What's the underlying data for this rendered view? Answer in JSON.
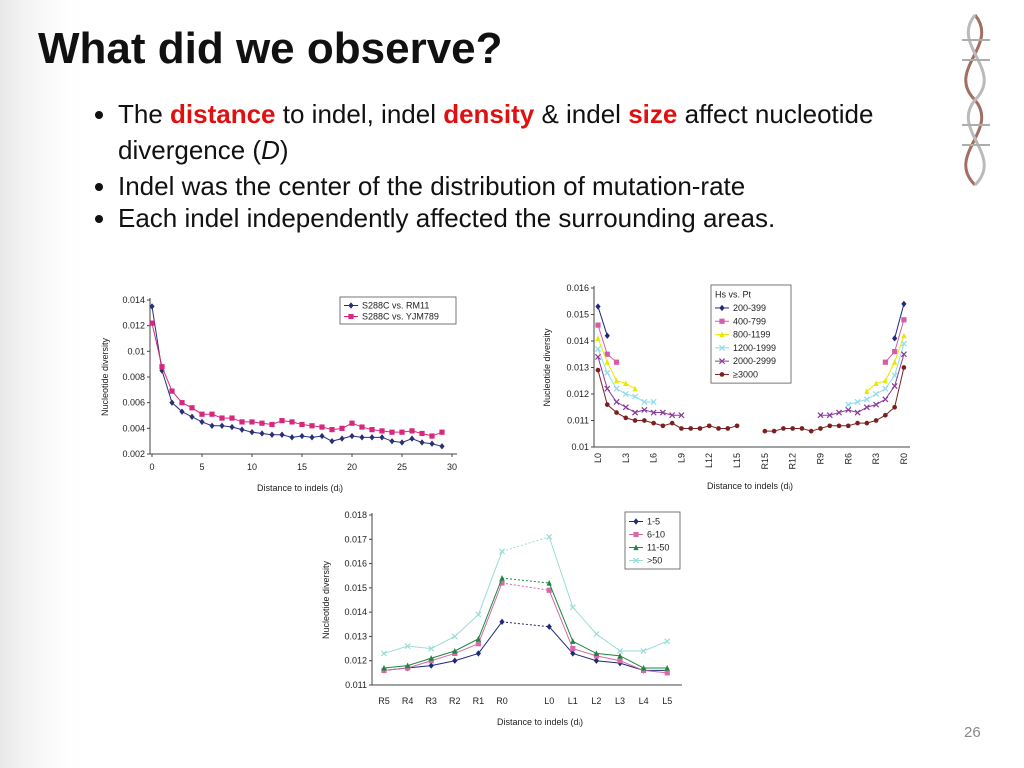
{
  "slide": {
    "title": "What did we observe?",
    "bullets": [
      [
        "The ",
        "distance",
        " to indel, indel ",
        "density",
        " & indel ",
        "size",
        " affect nucleotide divergence (",
        "D",
        ")"
      ],
      [
        "Indel was the center of the distribution of mutation-rate"
      ],
      [
        "Each indel independently affected the surrounding areas."
      ]
    ],
    "page_number": "26"
  },
  "chart_data": [
    {
      "type": "line",
      "xlabel": "Distance to indels (dᵢ)",
      "ylabel": "Nucleotide diversity",
      "x": [
        0,
        1,
        2,
        3,
        4,
        5,
        6,
        7,
        8,
        9,
        10,
        11,
        12,
        13,
        14,
        15,
        16,
        17,
        18,
        19,
        20,
        21,
        22,
        23,
        24,
        25,
        26,
        27,
        28,
        29
      ],
      "xlim": [
        0,
        30
      ],
      "xticks": [
        0,
        5,
        10,
        15,
        20,
        25,
        30
      ],
      "ylim": [
        0.002,
        0.014
      ],
      "yticks": [
        0.002,
        0.004,
        0.006,
        0.008,
        0.01,
        0.012,
        0.014
      ],
      "series": [
        {
          "name": "S288C vs. RM11",
          "color": "#2b2f7a",
          "marker": "diamond",
          "values": [
            0.0135,
            0.0085,
            0.006,
            0.0053,
            0.0049,
            0.0045,
            0.0042,
            0.0042,
            0.0041,
            0.0039,
            0.0037,
            0.0036,
            0.0035,
            0.0035,
            0.0033,
            0.0034,
            0.0033,
            0.0034,
            0.003,
            0.0032,
            0.0034,
            0.0033,
            0.0033,
            0.0033,
            0.003,
            0.0029,
            0.0032,
            0.0029,
            0.0028,
            0.0026
          ]
        },
        {
          "name": "S288C vs. YJM789",
          "color": "#d6287d",
          "marker": "square",
          "values": [
            0.0122,
            0.0088,
            0.0069,
            0.006,
            0.0056,
            0.0051,
            0.0051,
            0.0048,
            0.0048,
            0.0045,
            0.0045,
            0.0044,
            0.0043,
            0.0046,
            0.0045,
            0.0043,
            0.0042,
            0.0041,
            0.0039,
            0.004,
            0.0044,
            0.0041,
            0.0039,
            0.0038,
            0.0037,
            0.0037,
            0.0038,
            0.0036,
            0.0034,
            0.0037
          ]
        }
      ]
    },
    {
      "type": "line",
      "xlabel": "Distance to indels (dᵢ)",
      "ylabel": "Nucleotide diversity",
      "legend_title": "Hs vs. Pt",
      "categories": [
        "L0",
        null,
        null,
        "L3",
        null,
        null,
        "L6",
        null,
        null,
        "L9",
        null,
        null,
        "L12",
        null,
        null,
        "L15",
        "R15",
        null,
        null,
        "R12",
        null,
        null,
        "R9",
        null,
        null,
        "R6",
        null,
        null,
        "R3",
        null,
        null,
        "R0"
      ],
      "ylim": [
        0.01,
        0.016
      ],
      "yticks": [
        0.01,
        0.011,
        0.012,
        0.013,
        0.014,
        0.015,
        0.016
      ],
      "series": [
        {
          "name": "200-399",
          "color": "#1f2a7a",
          "marker": "diamond",
          "values": [
            0.0153,
            0.0142,
            null,
            null,
            null,
            null,
            null,
            null,
            null,
            null,
            null,
            null,
            null,
            null,
            null,
            null,
            null,
            null,
            null,
            null,
            null,
            null,
            null,
            null,
            null,
            null,
            null,
            null,
            null,
            null,
            0.0141,
            0.0154
          ]
        },
        {
          "name": "400-799",
          "color": "#d65ba8",
          "marker": "square",
          "values": [
            0.0146,
            0.0135,
            0.0132,
            null,
            null,
            null,
            null,
            null,
            null,
            null,
            null,
            null,
            null,
            null,
            null,
            null,
            null,
            null,
            null,
            null,
            null,
            null,
            null,
            null,
            null,
            null,
            null,
            null,
            null,
            0.0132,
            0.0136,
            0.0148
          ]
        },
        {
          "name": "800-1199",
          "color": "#e8e800",
          "marker": "triangle",
          "values": [
            0.0141,
            0.0132,
            0.0125,
            0.0124,
            0.0122,
            null,
            null,
            null,
            null,
            null,
            null,
            null,
            null,
            null,
            null,
            null,
            null,
            null,
            null,
            null,
            null,
            null,
            null,
            null,
            null,
            null,
            null,
            0.0121,
            0.0124,
            0.0125,
            0.0132,
            0.0142
          ]
        },
        {
          "name": "1200-1999",
          "color": "#8fdcec",
          "marker": "x",
          "values": [
            0.0137,
            0.0128,
            0.0122,
            0.012,
            0.0119,
            0.0117,
            0.0117,
            null,
            null,
            null,
            null,
            null,
            null,
            null,
            null,
            null,
            null,
            null,
            null,
            null,
            null,
            null,
            null,
            null,
            null,
            0.0116,
            0.0117,
            0.0118,
            0.012,
            0.0122,
            0.0127,
            0.0139
          ]
        },
        {
          "name": "2000-2999",
          "color": "#8a3a9a",
          "marker": "x",
          "values": [
            0.0134,
            0.0122,
            0.0117,
            0.0115,
            0.0113,
            0.0114,
            0.0113,
            0.0113,
            0.0112,
            0.0112,
            null,
            null,
            null,
            null,
            null,
            null,
            null,
            null,
            null,
            null,
            null,
            null,
            0.0112,
            0.0112,
            0.0113,
            0.0114,
            0.0113,
            0.0115,
            0.0116,
            0.0118,
            0.0123,
            0.0135
          ]
        },
        {
          "name": "≥3000",
          "color": "#7a2020",
          "marker": "circle",
          "values": [
            0.0129,
            0.0116,
            0.0113,
            0.0111,
            0.011,
            0.011,
            0.0109,
            0.0108,
            0.0109,
            0.0107,
            0.0107,
            0.0107,
            0.0108,
            0.0107,
            0.0107,
            0.0108,
            0.0106,
            0.0106,
            0.0107,
            0.0107,
            0.0107,
            0.0106,
            0.0107,
            0.0108,
            0.0108,
            0.0108,
            0.0109,
            0.0109,
            0.011,
            0.0112,
            0.0115,
            0.013
          ]
        }
      ]
    },
    {
      "type": "line",
      "xlabel": "Distance to indels (dᵢ)",
      "ylabel": "Nucleotide diversity",
      "categories": [
        "R5",
        "R4",
        "R3",
        "R2",
        "R1",
        "R0",
        "L0",
        "L1",
        "L2",
        "L3",
        "L4",
        "L5"
      ],
      "ylim": [
        0.011,
        0.018
      ],
      "yticks": [
        0.011,
        0.012,
        0.013,
        0.014,
        0.015,
        0.016,
        0.017,
        0.018
      ],
      "series": [
        {
          "name": "1-5",
          "color": "#1f2a7a",
          "marker": "diamond",
          "values": [
            0.0116,
            0.0117,
            0.0118,
            0.012,
            0.0123,
            0.0136,
            0.0134,
            0.0123,
            0.012,
            0.0119,
            0.0116,
            0.0116
          ]
        },
        {
          "name": "6-10",
          "color": "#d46aa8",
          "marker": "square",
          "values": [
            0.0116,
            0.0117,
            0.012,
            0.0123,
            0.0127,
            0.0152,
            0.0149,
            0.0125,
            0.0122,
            0.012,
            0.0116,
            0.0115
          ]
        },
        {
          "name": "11-50",
          "color": "#1a8a3a",
          "marker": "triangle",
          "values": [
            0.0117,
            0.0118,
            0.0121,
            0.0124,
            0.0129,
            0.0154,
            0.0152,
            0.0128,
            0.0123,
            0.0122,
            0.0117,
            0.0117
          ]
        },
        {
          "name": ">50",
          "color": "#9adcd8",
          "marker": "x",
          "values": [
            0.0123,
            0.0126,
            0.0125,
            0.013,
            0.0139,
            0.0165,
            0.0171,
            0.0142,
            0.0131,
            0.0124,
            0.0124,
            0.0128
          ]
        }
      ]
    }
  ]
}
